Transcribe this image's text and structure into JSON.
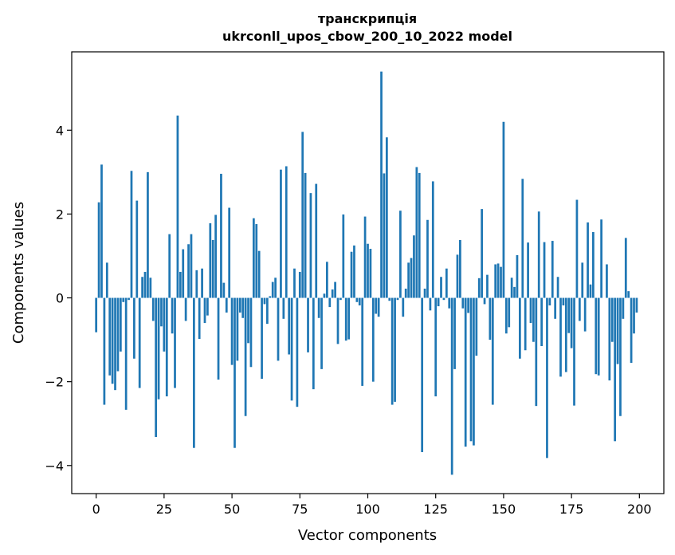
{
  "chart_data": {
    "type": "bar",
    "title": [
      "транскрипція",
      "ukrconll_upos_cbow_200_10_2022 model"
    ],
    "xlabel": "Vector components",
    "ylabel": "Components values",
    "xlim": [
      -9,
      209
    ],
    "ylim": [
      -4.67,
      5.87
    ],
    "xticks": [
      0,
      25,
      50,
      75,
      100,
      125,
      150,
      175,
      200
    ],
    "yticks": [
      -4,
      -2,
      0,
      2,
      4
    ],
    "ytick_labels": [
      "−4",
      "−2",
      "0",
      "2",
      "4"
    ],
    "bar_color": "#1f77b4",
    "grid": false,
    "x": [
      0,
      1,
      2,
      3,
      4,
      5,
      6,
      7,
      8,
      9,
      10,
      11,
      12,
      13,
      14,
      15,
      16,
      17,
      18,
      19,
      20,
      21,
      22,
      23,
      24,
      25,
      26,
      27,
      28,
      29,
      30,
      31,
      32,
      33,
      34,
      35,
      36,
      37,
      38,
      39,
      40,
      41,
      42,
      43,
      44,
      45,
      46,
      47,
      48,
      49,
      50,
      51,
      52,
      53,
      54,
      55,
      56,
      57,
      58,
      59,
      60,
      61,
      62,
      63,
      64,
      65,
      66,
      67,
      68,
      69,
      70,
      71,
      72,
      73,
      74,
      75,
      76,
      77,
      78,
      79,
      80,
      81,
      82,
      83,
      84,
      85,
      86,
      87,
      88,
      89,
      90,
      91,
      92,
      93,
      94,
      95,
      96,
      97,
      98,
      99,
      100,
      101,
      102,
      103,
      104,
      105,
      106,
      107,
      108,
      109,
      110,
      111,
      112,
      113,
      114,
      115,
      116,
      117,
      118,
      119,
      120,
      121,
      122,
      123,
      124,
      125,
      126,
      127,
      128,
      129,
      130,
      131,
      132,
      133,
      134,
      135,
      136,
      137,
      138,
      139,
      140,
      141,
      142,
      143,
      144,
      145,
      146,
      147,
      148,
      149,
      150,
      151,
      152,
      153,
      154,
      155,
      156,
      157,
      158,
      159,
      160,
      161,
      162,
      163,
      164,
      165,
      166,
      167,
      168,
      169,
      170,
      171,
      172,
      173,
      174,
      175,
      176,
      177,
      178,
      179,
      180,
      181,
      182,
      183,
      184,
      185,
      186,
      187,
      188,
      189,
      190,
      191,
      192,
      193,
      194,
      195,
      196,
      197,
      198,
      199
    ],
    "values": [
      -0.82,
      2.28,
      3.18,
      -2.55,
      0.84,
      -1.85,
      -2.05,
      -2.2,
      -1.75,
      -1.28,
      -0.1,
      -2.67,
      -0.05,
      3.03,
      -1.45,
      2.32,
      -2.15,
      0.5,
      0.62,
      3.0,
      0.48,
      -0.55,
      -3.32,
      -2.42,
      -0.68,
      -1.28,
      -2.35,
      1.52,
      -0.85,
      -2.15,
      4.35,
      0.62,
      1.16,
      -0.55,
      1.28,
      1.52,
      -3.58,
      0.66,
      -0.98,
      0.7,
      -0.6,
      -0.42,
      1.78,
      1.38,
      1.98,
      -1.95,
      2.96,
      0.36,
      -0.35,
      2.15,
      -1.6,
      -3.58,
      -1.5,
      -0.35,
      -0.48,
      -2.82,
      -1.08,
      -1.65,
      1.9,
      1.76,
      1.12,
      -1.93,
      -0.15,
      -0.62,
      0.04,
      0.38,
      0.48,
      -1.5,
      3.06,
      -0.5,
      3.14,
      -1.35,
      -2.45,
      0.7,
      -2.6,
      0.62,
      3.96,
      2.98,
      -1.3,
      2.5,
      -2.18,
      2.72,
      -0.48,
      -1.7,
      0.1,
      0.86,
      -0.22,
      0.2,
      0.38,
      -1.1,
      -0.05,
      1.99,
      -1.02,
      -0.99,
      1.1,
      1.25,
      -0.1,
      -0.18,
      -2.1,
      1.94,
      1.29,
      1.17,
      -2.0,
      -0.38,
      -0.45,
      5.4,
      2.97,
      3.83,
      -0.07,
      -2.55,
      -2.48,
      -0.05,
      2.08,
      -0.45,
      0.22,
      0.84,
      0.95,
      1.49,
      3.12,
      2.98,
      -3.68,
      0.22,
      1.86,
      -0.3,
      2.78,
      -2.35,
      -0.2,
      0.5,
      -0.05,
      0.7,
      -0.25,
      -4.22,
      -1.7,
      1.03,
      1.38,
      -0.25,
      -3.55,
      -0.36,
      -3.42,
      -3.52,
      -1.38,
      0.47,
      2.12,
      -0.15,
      0.55,
      -1.0,
      -2.55,
      0.8,
      0.82,
      0.74,
      4.2,
      -0.85,
      -0.7,
      0.48,
      0.26,
      1.02,
      -1.45,
      2.84,
      -1.25,
      1.32,
      -0.6,
      -1.05,
      -2.58,
      2.06,
      -1.15,
      1.33,
      -3.82,
      -0.18,
      1.36,
      -0.5,
      0.5,
      -1.88,
      -0.18,
      -1.77,
      -0.84,
      -1.2,
      -2.57,
      2.34,
      -0.55,
      0.84,
      -0.8,
      1.8,
      0.32,
      1.57,
      -1.82,
      -1.85,
      1.87,
      0.0,
      0.8,
      -1.97,
      -1.05,
      -3.42,
      -1.58,
      -2.82,
      -0.5,
      1.43,
      0.16,
      -1.55,
      -0.85,
      -0.35
    ]
  }
}
